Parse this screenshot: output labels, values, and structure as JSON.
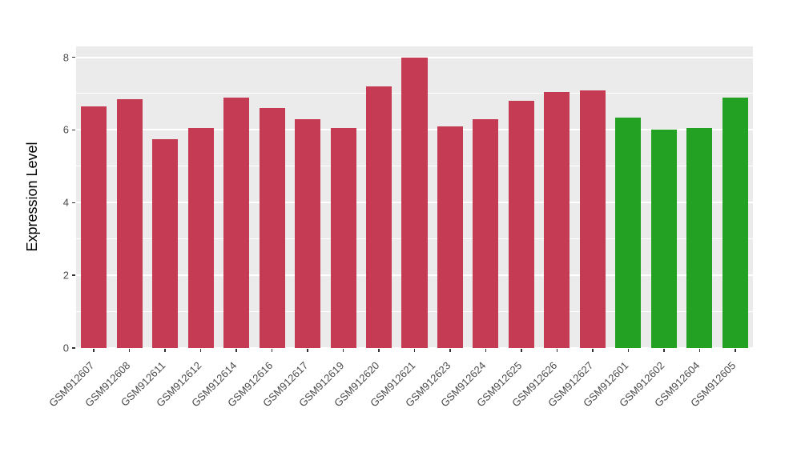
{
  "chart_data": {
    "type": "bar",
    "title": "",
    "xlabel": "",
    "ylabel": "Expression Level",
    "ylim": [
      0,
      8.3
    ],
    "yticks": [
      0,
      2,
      4,
      6,
      8
    ],
    "minor_gridlines": [
      1,
      3,
      5,
      7
    ],
    "grid": true,
    "legend": "none",
    "panel_background": "#EBEBEB",
    "gridline_color": "#FFFFFF",
    "categories": [
      "GSM912607",
      "GSM912608",
      "GSM912611",
      "GSM912612",
      "GSM912614",
      "GSM912616",
      "GSM912617",
      "GSM912619",
      "GSM912620",
      "GSM912621",
      "GSM912623",
      "GSM912624",
      "GSM912625",
      "GSM912626",
      "GSM912627",
      "GSM912601",
      "GSM912602",
      "GSM912604",
      "GSM912605"
    ],
    "values": [
      6.65,
      6.85,
      5.75,
      6.05,
      6.9,
      6.6,
      6.3,
      6.05,
      7.2,
      8.0,
      6.1,
      6.3,
      6.8,
      7.05,
      7.1,
      6.35,
      6.0,
      6.05,
      6.9
    ],
    "groups": [
      "group1",
      "group1",
      "group1",
      "group1",
      "group1",
      "group1",
      "group1",
      "group1",
      "group1",
      "group1",
      "group1",
      "group1",
      "group1",
      "group1",
      "group1",
      "group2",
      "group2",
      "group2",
      "group2"
    ],
    "group_colors": {
      "group1": "#C53B53",
      "group2": "#22A122"
    },
    "bar_width_fraction": 0.72
  }
}
